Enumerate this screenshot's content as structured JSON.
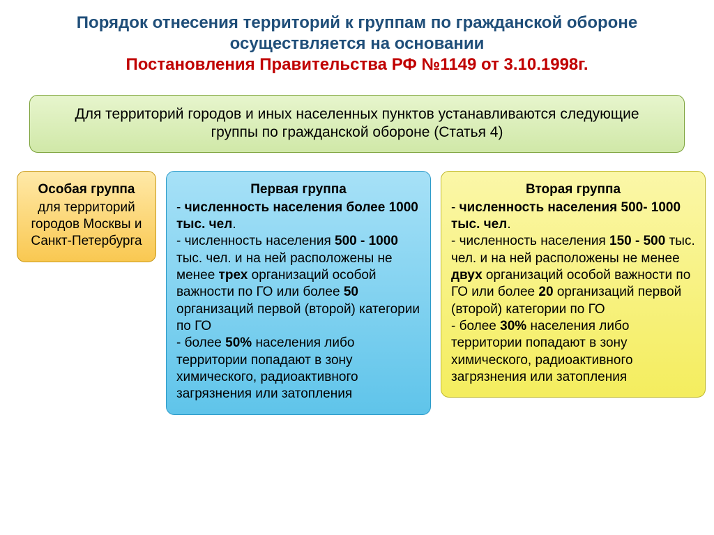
{
  "type": "infographic",
  "background_color": "#ffffff",
  "title": {
    "line1": "Порядок отнесения территорий к группам по  гражданской обороне осуществляется на основании",
    "line2": "Постановления Правительства РФ №1149 от 3.10.1998г.",
    "color_main": "#1f4e79",
    "color_highlight": "#c00000",
    "font_size": 24,
    "font_weight": "bold"
  },
  "subtitle": {
    "text": "Для территорий городов и иных населенных пунктов устанавливаются следующие группы по гражданской обороне (Статья 4)",
    "bg_color": "#d9eeb3",
    "border_color": "#7ca23a",
    "font_size": 21
  },
  "cards": {
    "special": {
      "title": "Особая группа",
      "body": "для территорий городов Москвы и Санкт-Петербурга",
      "bg_color": "#fcd86a",
      "border_color": "#c79a1e",
      "font_size": 19
    },
    "first": {
      "title": "Первая группа",
      "bg_color": "#7fd1ef",
      "border_color": "#2d9bc9",
      "font_size": 19,
      "items": [
        {
          "prefix": "- ",
          "bold_start": "численность населения более 1000 тыс. чел",
          "rest": "."
        },
        {
          "prefix": "- численность населения ",
          "bold_start": "500 - 1000",
          "mid": " тыс. чел. и на ней расположены не менее ",
          "bold2": "трех",
          "mid2": " организаций особой важности по ГО или более ",
          "bold3": "50",
          "rest": " организаций первой (второй) категории по ГО"
        },
        {
          "prefix": "-  более ",
          "bold_start": "50%",
          "rest": " населения либо территории попадают в зону химического, радиоактивного загрязнения или затопления"
        }
      ]
    },
    "second": {
      "title": "Вторая группа",
      "bg_color": "#f7f176",
      "border_color": "#c0b92e",
      "font_size": 19,
      "items": [
        {
          "prefix": "- ",
          "bold_start": "численность населения 500- 1000 тыс. чел",
          "rest": "."
        },
        {
          "prefix": "- численность населения ",
          "bold_start": "150 - 500",
          "mid": " тыс. чел. и на ней расположены не менее ",
          "bold2": "двух",
          "mid2": " организаций особой важности по ГО или более ",
          "bold3": "20",
          "rest": " организаций первой (второй) категории по ГО"
        },
        {
          "prefix": "-  более ",
          "bold_start": "30%",
          "rest": " населения либо территории попадают в зону химического, радиоактивного загрязнения или затопления"
        }
      ]
    }
  }
}
